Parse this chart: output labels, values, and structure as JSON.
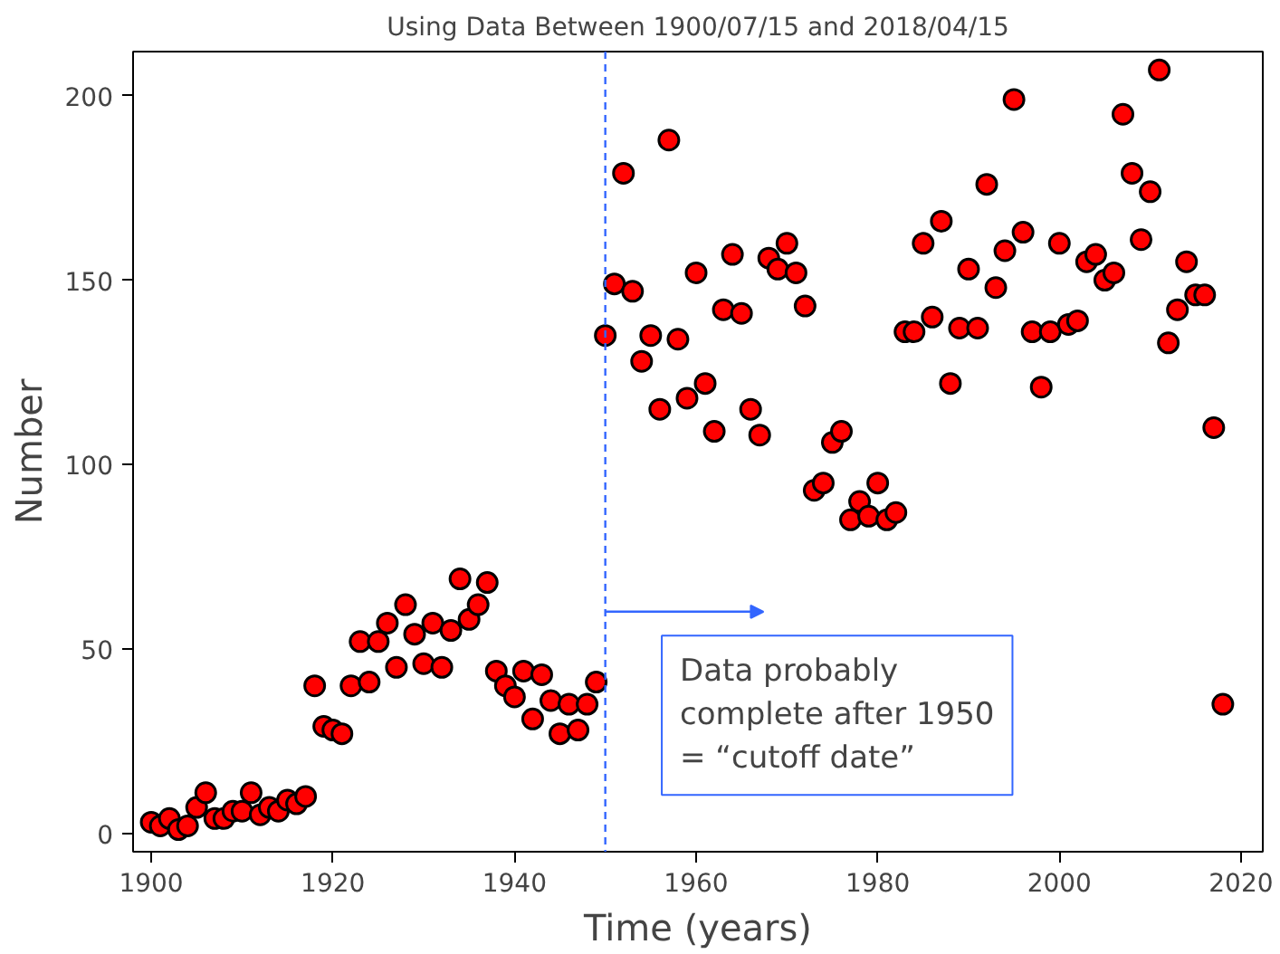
{
  "chart_data": {
    "type": "scatter",
    "title": "Using Data Between 1900/07/15 and 2018/04/15",
    "xlabel": "Time (years)",
    "ylabel": "Number",
    "x": [
      1900,
      1901,
      1902,
      1903,
      1904,
      1905,
      1906,
      1907,
      1908,
      1909,
      1910,
      1911,
      1912,
      1913,
      1914,
      1915,
      1916,
      1917,
      1918,
      1919,
      1920,
      1921,
      1922,
      1923,
      1924,
      1925,
      1926,
      1927,
      1928,
      1929,
      1930,
      1931,
      1932,
      1933,
      1934,
      1935,
      1936,
      1937,
      1938,
      1939,
      1940,
      1941,
      1942,
      1943,
      1944,
      1945,
      1946,
      1947,
      1948,
      1949,
      1950,
      1951,
      1952,
      1953,
      1954,
      1955,
      1956,
      1957,
      1958,
      1959,
      1960,
      1961,
      1962,
      1963,
      1964,
      1965,
      1966,
      1967,
      1968,
      1969,
      1970,
      1971,
      1972,
      1973,
      1974,
      1975,
      1976,
      1977,
      1978,
      1979,
      1980,
      1981,
      1982,
      1983,
      1984,
      1985,
      1986,
      1987,
      1988,
      1989,
      1990,
      1991,
      1992,
      1993,
      1994,
      1995,
      1996,
      1997,
      1998,
      1999,
      2000,
      2001,
      2002,
      2003,
      2004,
      2005,
      2006,
      2007,
      2008,
      2009,
      2010,
      2011,
      2012,
      2013,
      2014,
      2015,
      2016,
      2017,
      2018
    ],
    "series": [
      {
        "color": "#ff0000",
        "values": [
          3,
          2,
          4,
          1,
          2,
          7,
          11,
          4,
          4,
          6,
          6,
          11,
          5,
          7,
          6,
          9,
          8,
          10,
          40,
          29,
          28,
          27,
          40,
          52,
          41,
          52,
          57,
          45,
          62,
          54,
          46,
          57,
          45,
          55,
          69,
          58,
          62,
          68,
          44,
          40,
          37,
          44,
          31,
          43,
          36,
          27,
          35,
          28,
          35,
          41,
          135,
          149,
          179,
          147,
          128,
          135,
          115,
          188,
          134,
          118,
          152,
          122,
          109,
          142,
          157,
          141,
          115,
          108,
          156,
          153,
          160,
          152,
          143,
          93,
          95,
          106,
          109,
          85,
          90,
          86,
          95,
          85,
          87,
          136,
          136,
          160,
          140,
          166,
          122,
          137,
          153,
          137,
          176,
          148,
          158,
          199,
          163,
          136,
          121,
          136,
          160,
          138,
          139,
          155,
          157,
          150,
          152,
          195,
          179,
          161,
          174,
          207,
          133,
          142,
          155,
          146,
          146,
          110,
          35
        ]
      }
    ],
    "xlim": [
      1898,
      2022.4
    ],
    "ylim": [
      -5,
      212
    ],
    "xticks": [
      1900,
      1920,
      1940,
      1960,
      1980,
      2000,
      2020
    ],
    "yticks": [
      0,
      50,
      100,
      150,
      200
    ],
    "marker": "circle",
    "grid": false,
    "ref_lines": [
      {
        "axis": "x",
        "value": 1950,
        "color": "#3366ff",
        "line_style": "dashed"
      }
    ],
    "annotations": [
      "Data probably complete after 1950 = “cutoff date”"
    ]
  }
}
